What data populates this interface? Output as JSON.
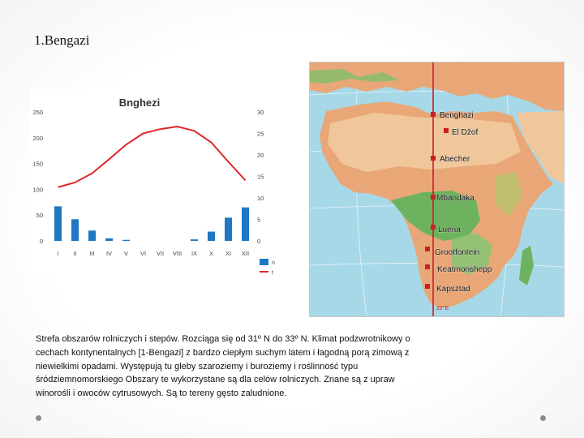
{
  "slide_title": "1.Bengazi",
  "chart_data": {
    "type": "climate",
    "title": "Bnghezi",
    "categories": [
      "I",
      "II",
      "III",
      "IV",
      "V",
      "VI",
      "VII",
      "VIII",
      "IX",
      "X",
      "XI",
      "XII"
    ],
    "left_axis_ticks": [
      "250",
      "200",
      "150",
      "100",
      "50",
      "0"
    ],
    "right_axis_ticks": [
      "30",
      "25",
      "20",
      "15",
      "10",
      "5",
      "0"
    ],
    "ylim_left": [
      0,
      250
    ],
    "ylim_right": [
      0,
      30
    ],
    "series": [
      {
        "type": "bar",
        "color": "#1f77c4",
        "values": [
          67,
          42,
          20,
          5,
          2,
          0,
          0,
          0,
          3,
          18,
          45,
          65
        ]
      },
      {
        "type": "line",
        "color": "#e0262b",
        "values": [
          12.5,
          13.6,
          15.7,
          19,
          22.4,
          25,
          26,
          26.6,
          25.6,
          22.9,
          18.4,
          14.1
        ]
      }
    ],
    "legend_labels": [
      "n",
      "t"
    ]
  },
  "map": {
    "labels": [
      "Benghazi",
      "El Džof",
      "Abecher",
      "Mbandaka",
      "Luena",
      "Grootfontein",
      "Keatmonshepp",
      "Kapsztad"
    ],
    "meridian_label": "22°E",
    "colors": {
      "ocean": "#a7d8e8",
      "land": "#e9a778",
      "desert": "#f0c79a",
      "forest": "#6db35f",
      "marker": "#c8202a"
    }
  },
  "description": "Strefa obszarów rolniczych i stepów. Rozciąga się od 31º N do 33º N. Klimat podzwrotnikowy o cechach kontynentalnych [1-Bengazi] z bardzo ciepłym suchym latem i łagodną porą zimową z niewielkimi opadami. Występują tu gleby szaroziemy i buroziemy i roślinność typu śródziemnomorskiego Obszary te wykorzystane są dla celów rolniczych. Znane są z upraw winorośli i owoców cytrusowych. Są to tereny gęsto zaludnione."
}
